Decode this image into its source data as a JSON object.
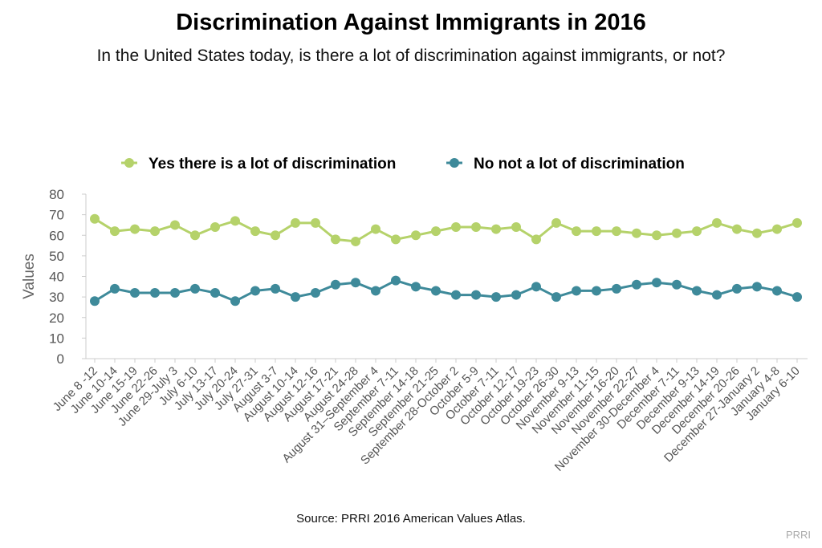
{
  "chart_data": {
    "type": "line",
    "title": "Discrimination Against Immigrants in 2016",
    "subtitle": "In the United States today, is there a lot of discrimination against immigrants, or not?",
    "ylabel": "Values",
    "xlabel": "",
    "ylim": [
      0,
      80
    ],
    "yticks": [
      0,
      10,
      20,
      30,
      40,
      50,
      60,
      70,
      80
    ],
    "grid": false,
    "legend_position": "top-center",
    "categories": [
      "June 8 -12",
      "June 10-14",
      "June 15-19",
      "June 22-26",
      "June 29-July 3",
      "July 6-10",
      "July 13-17",
      "July 20-24",
      "July 27-31",
      "August 3-7",
      "August 10-14",
      "August 12-16",
      "August 17-21",
      "August 24-28",
      "August 31–September 4",
      "September 7-11",
      "September 14-18",
      "September 21-25",
      "September 28-October 2",
      "October 5-9",
      "October 7-11",
      "October 12-17",
      "October 19-23",
      "October 26-30",
      "November 9-13",
      "November 11-15",
      "November 16-20",
      "November 22-27",
      "November 30-December 4",
      "December 7-11",
      "December 9-13",
      "December 14-19",
      "December 20-26",
      "December 27-January 2",
      "January 4-8",
      "January 6-10"
    ],
    "series": [
      {
        "name": "Yes there is a lot of discrimination",
        "color": "#b5d26a",
        "values": [
          68,
          62,
          63,
          62,
          65,
          60,
          64,
          67,
          62,
          60,
          66,
          66,
          58,
          57,
          63,
          58,
          60,
          62,
          64,
          64,
          63,
          64,
          58,
          66,
          62,
          62,
          62,
          61,
          60,
          61,
          62,
          66,
          63,
          61,
          63,
          66
        ]
      },
      {
        "name": "No not a lot of discrimination",
        "color": "#3e8a9a",
        "values": [
          28,
          34,
          32,
          32,
          32,
          34,
          32,
          28,
          33,
          34,
          30,
          32,
          36,
          37,
          33,
          38,
          35,
          33,
          31,
          31,
          30,
          31,
          35,
          30,
          33,
          33,
          34,
          36,
          37,
          36,
          33,
          31,
          34,
          35,
          33,
          30
        ]
      }
    ]
  },
  "footer": {
    "source": "Source: PRRI 2016 American Values Atlas.",
    "credit": "PRRI"
  }
}
